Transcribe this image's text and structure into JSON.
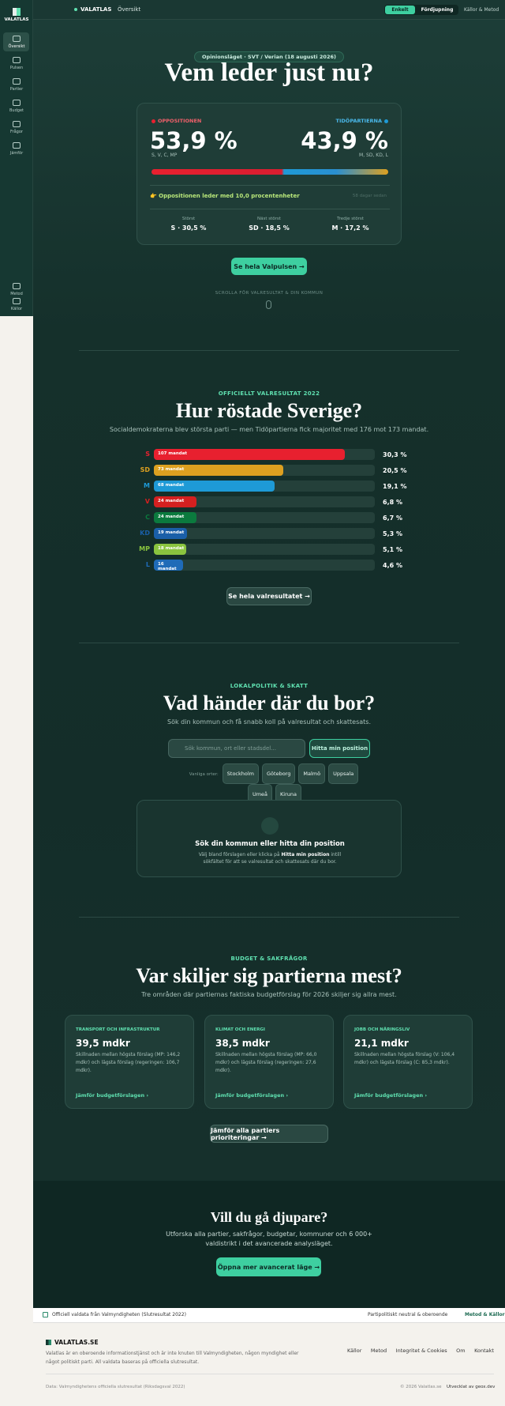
{
  "sidebar": {
    "logo": "VALATLAS",
    "items": [
      "Översikt",
      "Pulsen",
      "Partier",
      "Budget",
      "Frågor",
      "Jämför"
    ],
    "bottom_items": [
      "Metod",
      "Källor"
    ]
  },
  "topbar": {
    "brand": "VALATLAS",
    "page": "Översikt",
    "modes": [
      "Enkelt",
      "Fördjupning"
    ],
    "link": "Källor & Metod"
  },
  "hero": {
    "badge": "Opinionsläget · SVT / Verian (18 augusti 2026)",
    "title": "Vem leder just nu?",
    "left": {
      "label": "OPPOSITIONEN",
      "value": "53,9 %",
      "parties": "S, V, C, MP"
    },
    "right": {
      "label": "TIDÖPARTIERNA",
      "value": "43,9 %",
      "parties": "M, SD, KD, L"
    },
    "lead": "👉 Oppositionen leder med 10,0 procentenheter",
    "age": "58 dagar sedan",
    "stats": [
      {
        "label": "Störst",
        "value": "S · 30,5 %"
      },
      {
        "label": "Näst störst",
        "value": "SD · 18,5 %"
      },
      {
        "label": "Tredje störst",
        "value": "M · 17,2 %"
      }
    ],
    "button": "Se hela Valpulsen →",
    "scroll": "SCROLLA FÖR VALRESULTAT & DIN KOMMUN"
  },
  "results": {
    "badge": "OFFICIELLT VALRESULTAT 2022",
    "title": "Hur röstade Sverige?",
    "subtitle": "Socialdemokraterna blev största parti — men Tidöpartierna fick majoritet med 176 mot 173 mandat.",
    "categories": [
      "S",
      "SD",
      "M",
      "V",
      "C",
      "KD",
      "MP",
      "L"
    ],
    "seat_labels": [
      "107 mandat",
      "73 mandat",
      "68 mandat",
      "24 mandat",
      "24 mandat",
      "19 mandat",
      "18 mandat",
      "16 mandat"
    ],
    "values": [
      30.3,
      20.5,
      19.1,
      6.8,
      6.7,
      5.3,
      5.1,
      4.6
    ],
    "value_labels": [
      "30,3 %",
      "20,5 %",
      "19,1 %",
      "6,8 %",
      "6,7 %",
      "5,3 %",
      "5,1 %",
      "4,6 %"
    ],
    "colors": [
      "#e8202f",
      "#dda020",
      "#1e9ad6",
      "#d42020",
      "#0b7a3e",
      "#1a5fa8",
      "#8ac43f",
      "#1f6bb8"
    ],
    "xlim": [
      0,
      35
    ],
    "button": "Se hela valresultatet →"
  },
  "local": {
    "badge": "LOKALPOLITIK & SKATT",
    "title": "Vad händer där du bor?",
    "subtitle": "Sök din kommun och få snabb koll på valresultat och skattesats.",
    "search_placeholder": "Sök kommun, ort eller stadsdel...",
    "locate_button": "Hitta min position",
    "popular_label": "Vanliga orter:",
    "popular": [
      "Stockholm",
      "Göteborg",
      "Malmö",
      "Uppsala",
      "Umeå",
      "Kiruna"
    ],
    "card_title": "Sök din kommun eller hitta din position",
    "card_text_1": "Välj bland förslagen eller klicka på",
    "card_text_bold": "Hitta min position",
    "card_text_2": "intill sökfältet för att se valresultat och skattesats där du bor."
  },
  "budget": {
    "badge": "BUDGET & SAKFRÅGOR",
    "title": "Var skiljer sig partierna mest?",
    "subtitle": "Tre områden där partiernas faktiska budgetförslag för 2026 skiljer sig allra mest.",
    "cards": [
      {
        "label": "TRANSPORT OCH INFRASTRUKTUR",
        "value": "39,5 mdkr",
        "text": "Skillnaden mellan högsta förslag (MP: 146,2 mdkr) och lägsta förslag (regeringen: 106,7 mdkr).",
        "link": "Jämför budgetförslagen ›"
      },
      {
        "label": "KLIMAT OCH ENERGI",
        "value": "38,5 mdkr",
        "text": "Skillnaden mellan högsta förslag (MP: 66,0 mdkr) och lägsta förslag (regeringen: 27,6 mdkr).",
        "link": "Jämför budgetförslagen ›"
      },
      {
        "label": "JOBB OCH NÄRINGSLIV",
        "value": "21,1 mdkr",
        "text": "Skillnaden mellan högsta förslag (V: 106,4 mdkr) och lägsta förslag (C: 85,3 mdkr).",
        "link": "Jämför budgetförslagen ›"
      }
    ],
    "button": "Jämför alla partiers prioriteringar →"
  },
  "cta": {
    "title": "Vill du gå djupare?",
    "text": "Utforska alla partier, sakfrågor, budgetar, kommuner och 6 000+ valdistrikt i det avancerade analysläget.",
    "button": "Öppna mer avancerat läge →"
  },
  "footer": {
    "strip": [
      "Officiell valdata från Valmyndigheten (Slutresultat 2022)",
      "Partipolitiskt neutral & oberoende",
      "Metod & Källor"
    ],
    "brand": "VALATLAS.SE",
    "about": "Valatlas är en oberoende informationstjänst och är inte knuten till Valmyndigheten, någon myndighet eller något politiskt parti. All valdata baseras på officiella slutresultat.",
    "links": [
      "Källor",
      "Metod",
      "Integritet & Cookies",
      "Om",
      "Kontakt"
    ],
    "source": "Data: Valmyndighetens officiella slutresultat (Riksdagsval 2022)",
    "copyright": "© 2026 Valatlas.se",
    "developer": "Utvecklat av geox.dev"
  }
}
